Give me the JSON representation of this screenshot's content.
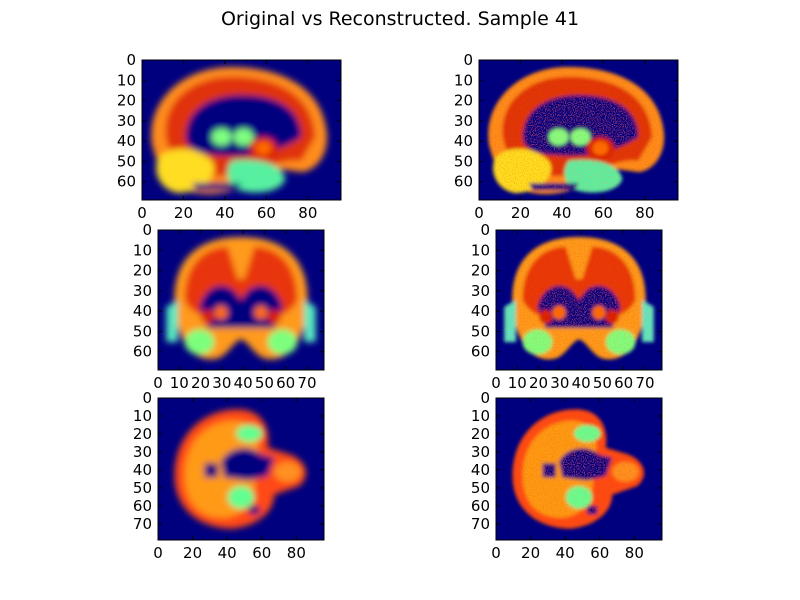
{
  "title": "Original vs Reconstructed. Sample 41",
  "colors": {
    "background": "#00007f",
    "colormap": "jet"
  },
  "chart_data": [
    {
      "type": "heatmap",
      "panel": "original",
      "view": "sagittal",
      "xlim": [
        0,
        96
      ],
      "ylim": [
        69,
        0
      ],
      "xticks": [
        "0",
        "20",
        "40",
        "60",
        "80"
      ],
      "yticks": [
        "0",
        "10",
        "20",
        "30",
        "40",
        "50",
        "60"
      ]
    },
    {
      "type": "heatmap",
      "panel": "reconstructed",
      "view": "sagittal",
      "xlim": [
        0,
        96
      ],
      "ylim": [
        69,
        0
      ],
      "xticks": [
        "0",
        "20",
        "40",
        "60",
        "80"
      ],
      "yticks": [
        "0",
        "10",
        "20",
        "30",
        "40",
        "50",
        "60"
      ]
    },
    {
      "type": "heatmap",
      "panel": "original",
      "view": "coronal",
      "xlim": [
        0,
        78
      ],
      "ylim": [
        69,
        0
      ],
      "xticks": [
        "0",
        "10",
        "20",
        "30",
        "40",
        "50",
        "60",
        "70"
      ],
      "yticks": [
        "0",
        "10",
        "20",
        "30",
        "40",
        "50",
        "60"
      ]
    },
    {
      "type": "heatmap",
      "panel": "reconstructed",
      "view": "coronal",
      "xlim": [
        0,
        78
      ],
      "ylim": [
        69,
        0
      ],
      "xticks": [
        "0",
        "10",
        "20",
        "30",
        "40",
        "50",
        "60",
        "70"
      ],
      "yticks": [
        "0",
        "10",
        "20",
        "30",
        "40",
        "50",
        "60"
      ]
    },
    {
      "type": "heatmap",
      "panel": "original",
      "view": "axial",
      "xlim": [
        0,
        96
      ],
      "ylim": [
        79,
        0
      ],
      "xticks": [
        "0",
        "20",
        "40",
        "60",
        "80"
      ],
      "yticks": [
        "0",
        "10",
        "20",
        "30",
        "40",
        "50",
        "60",
        "70"
      ]
    },
    {
      "type": "heatmap",
      "panel": "reconstructed",
      "view": "axial",
      "xlim": [
        0,
        96
      ],
      "ylim": [
        79,
        0
      ],
      "xticks": [
        "0",
        "20",
        "40",
        "60",
        "80"
      ],
      "yticks": [
        "0",
        "10",
        "20",
        "30",
        "40",
        "50",
        "60",
        "70"
      ]
    }
  ]
}
